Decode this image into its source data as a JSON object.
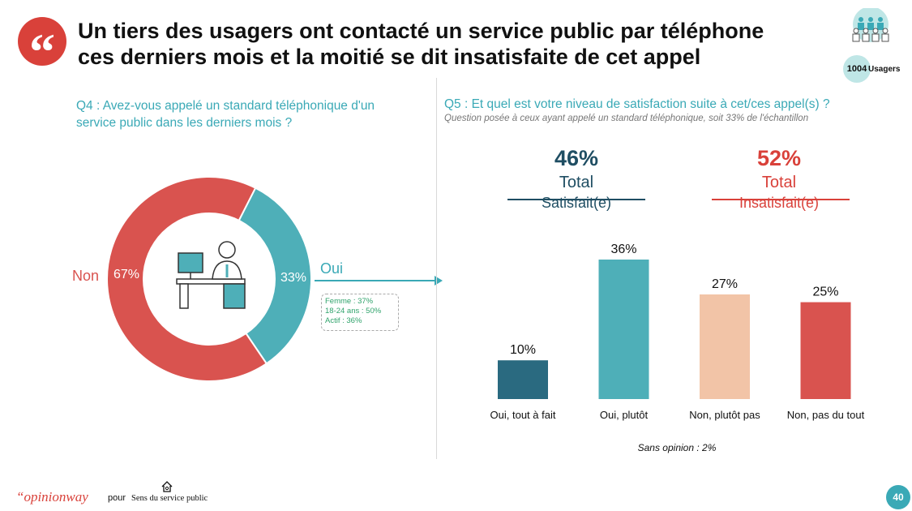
{
  "header": {
    "title_line1": "Un tiers des usagers ont contacté un service public par téléphone",
    "title_line2": "ces derniers mois et la moitié se dit insatisfaite de cet appel",
    "sample_count": "1004",
    "sample_label": "Usagers"
  },
  "left": {
    "question_line1": "Q4 : Avez-vous appelé un standard téléphonique d'un",
    "question_line2": "service public dans les derniers mois ?",
    "non_label": "Non",
    "non_pct": "67%",
    "oui_label": "Oui",
    "oui_pct": "33%",
    "callout_1": "Femme : 37%",
    "callout_2": "18-24 ans : 50%",
    "callout_3": "Actif : 36%"
  },
  "right": {
    "question": "Q5 : Et quel est votre niveau de satisfaction suite à cet/ces appel(s) ?",
    "subtitle": "Question posée à ceux ayant appelé un standard téléphonique, soit 33% de l'échantillon",
    "total_satisfait_pct": "46%",
    "total_satisfait_word": "Total",
    "total_satisfait_sub": "Satisfait(e)",
    "total_insatisfait_pct": "52%",
    "total_insatisfait_word": "Total",
    "total_insatisfait_sub": "Insatisfait(e)",
    "sans_opinion": "Sans opinion : 2%"
  },
  "colors": {
    "red": "#d9534f",
    "teal": "#4eafb8",
    "dark_teal": "#2a6a80",
    "peach": "#f2c4a7",
    "navy": "#1f4e63"
  },
  "chart_data": [
    {
      "type": "pie",
      "categories": [
        "Non",
        "Oui"
      ],
      "values": [
        67,
        33
      ],
      "colors": [
        "#d9534f",
        "#4eafb8"
      ]
    },
    {
      "type": "bar",
      "categories": [
        "Oui, tout à fait",
        "Oui, plutôt",
        "Non, plutôt pas",
        "Non, pas du tout"
      ],
      "values": [
        10,
        36,
        27,
        25
      ],
      "value_labels": [
        "10%",
        "36%",
        "27%",
        "25%"
      ],
      "colors": [
        "#2a6a80",
        "#4eafb8",
        "#f2c4a7",
        "#d9534f"
      ],
      "ylim": [
        0,
        36
      ]
    }
  ],
  "footer": {
    "logo": "“opinionway",
    "pour": "pour",
    "partner": "Sens du service public",
    "page": "40"
  }
}
